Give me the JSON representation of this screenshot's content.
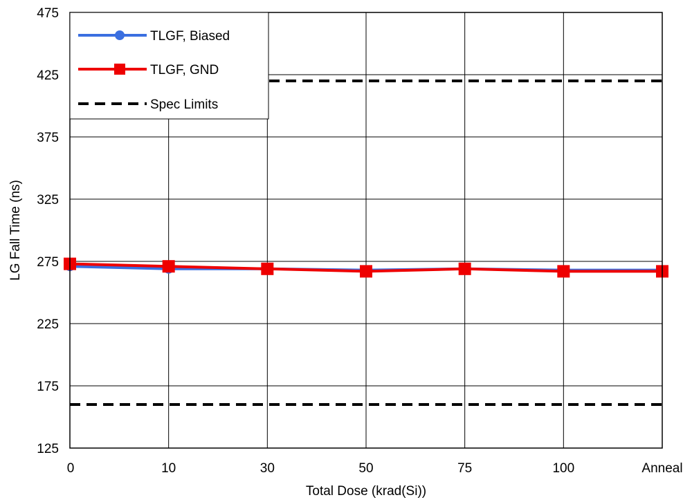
{
  "chart_data": {
    "type": "line",
    "title": "",
    "xlabel": "Total Dose (krad(Si))",
    "ylabel": "LG Fall Time (ns)",
    "categories": [
      "0",
      "10",
      "30",
      "50",
      "75",
      "100",
      "Anneal"
    ],
    "ylim": [
      125,
      475
    ],
    "yticks": [
      125,
      175,
      225,
      275,
      325,
      375,
      425,
      475
    ],
    "grid": true,
    "legend_position": "top-left",
    "series": [
      {
        "name": "TLGF, Biased",
        "color": "#3b6fe0",
        "marker": "circle",
        "values": [
          271,
          269,
          269,
          268,
          269,
          268,
          268
        ]
      },
      {
        "name": "TLGF, GND",
        "color": "#ee0000",
        "marker": "square",
        "values": [
          273,
          271,
          269,
          267,
          269,
          267,
          267
        ]
      }
    ],
    "spec_limits": {
      "name": "Spec Limits",
      "color": "#000000",
      "style": "dashed",
      "values": [
        420,
        160
      ]
    }
  }
}
